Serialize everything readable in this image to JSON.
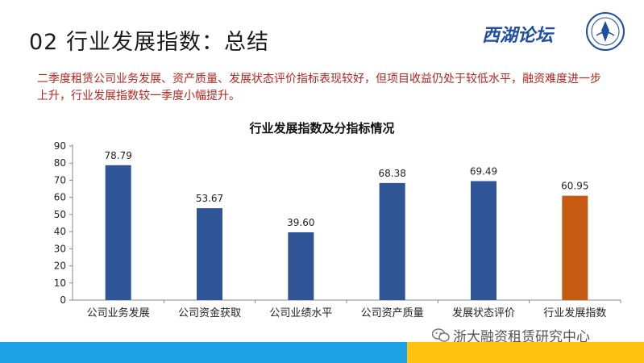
{
  "slide": {
    "title": "02 行业发展指数：总结",
    "logo_text": "西湖论坛",
    "summary": "二季度租赁公司业务发展、资产质量、发展状态评价指标表现较好，但项目收益仍处于较低水平，融资难度进一步上升，行业发展指数较一季度小幅提升。",
    "watermark": "浙大融资租赁研究中心",
    "watermark_icon": "wechat-icon",
    "colors": {
      "bar_default": "#2f5597",
      "bar_highlight": "#c55a11",
      "stripe_blue": "#1ea0e4",
      "stripe_yellow": "#ffc20e",
      "summary_text": "#b5241e"
    }
  },
  "chart_data": {
    "type": "bar",
    "title": "行业发展指数及分指标情况",
    "categories": [
      "公司业务发展",
      "公司资金获取",
      "公司业绩水平",
      "公司资产质量",
      "发展状态评价",
      "行业发展指数"
    ],
    "values": [
      78.79,
      53.67,
      39.6,
      68.38,
      69.49,
      60.95
    ],
    "value_labels": [
      "78.79",
      "53.67",
      "39.60",
      "68.38",
      "69.49",
      "60.95"
    ],
    "highlight_index": 5,
    "ylim": [
      0,
      90
    ],
    "yticks": [
      "0",
      "10",
      "20",
      "30",
      "40",
      "50",
      "60",
      "70",
      "80",
      "90"
    ],
    "grid": false,
    "legend": "none"
  }
}
